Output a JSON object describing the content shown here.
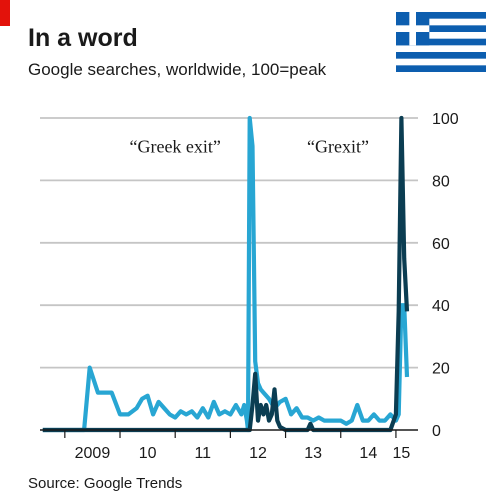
{
  "header": {
    "accent_color": "#e3120b",
    "flag": {
      "name": "greek-flag-icon",
      "blue": "#0d5eaf",
      "white": "#ffffff"
    }
  },
  "chart_data": {
    "type": "line",
    "title": "In a word",
    "subtitle": "Google searches, worldwide, 100=peak",
    "source": "Source: Google Trends",
    "ylim": [
      0,
      100
    ],
    "y_ticks": [
      0,
      20,
      40,
      60,
      80,
      100
    ],
    "y_tick_labels": [
      "0",
      "20",
      "40",
      "60",
      "80",
      "100"
    ],
    "xlim": [
      2008.55,
      2015.4
    ],
    "x_tick_labels": [
      {
        "pos": 2009.5,
        "label": "2009"
      },
      {
        "pos": 2010.5,
        "label": "10"
      },
      {
        "pos": 2011.5,
        "label": "11"
      },
      {
        "pos": 2012.5,
        "label": "12"
      },
      {
        "pos": 2013.5,
        "label": "13"
      },
      {
        "pos": 2014.5,
        "label": "14"
      },
      {
        "pos": 2015.1,
        "label": "15"
      }
    ],
    "x_tick_marks": [
      2009,
      2010,
      2011,
      2012,
      2013,
      2014,
      2015
    ],
    "grid": true,
    "annotations": [
      {
        "text": "“Greek exit”",
        "x": 2011.0,
        "y": 89
      },
      {
        "text": "“Grexit”",
        "x": 2013.95,
        "y": 89
      }
    ],
    "series": [
      {
        "color": "#28a6d3",
        "x": [
          2008.6,
          2009.2,
          2009.35,
          2009.45,
          2009.6,
          2009.75,
          2009.85,
          2010.0,
          2010.15,
          2010.3,
          2010.4,
          2010.5,
          2010.6,
          2010.7,
          2010.8,
          2010.9,
          2011.0,
          2011.1,
          2011.2,
          2011.3,
          2011.4,
          2011.5,
          2011.6,
          2011.7,
          2011.8,
          2011.9,
          2012.0,
          2012.1,
          2012.2,
          2012.25,
          2012.3,
          2012.32,
          2012.35,
          2012.4,
          2012.45,
          2012.5,
          2012.55,
          2012.6,
          2012.7,
          2012.8,
          2012.9,
          2013.0,
          2013.1,
          2013.2,
          2013.3,
          2013.4,
          2013.5,
          2013.6,
          2013.7,
          2013.8,
          2013.9,
          2014.0,
          2014.1,
          2014.2,
          2014.3,
          2014.4,
          2014.5,
          2014.6,
          2014.7,
          2014.8,
          2014.9,
          2014.95,
          2015.0,
          2015.05,
          2015.1,
          2015.15,
          2015.2
        ],
        "values": [
          0,
          0,
          0,
          20,
          12,
          12,
          12,
          5,
          5,
          7,
          10,
          11,
          5,
          9,
          7,
          5,
          4,
          6,
          5,
          6,
          4,
          7,
          4,
          9,
          5,
          6,
          5,
          8,
          5,
          8,
          3,
          0,
          100,
          91,
          22,
          15,
          13,
          12,
          10,
          7,
          9,
          10,
          5,
          7,
          4,
          4,
          3,
          4,
          3,
          3,
          3,
          3,
          2,
          3,
          8,
          3,
          3,
          5,
          3,
          3,
          5,
          4,
          3,
          5,
          40,
          40,
          17
        ]
      },
      {
        "color": "#0b3d52",
        "x": [
          2008.6,
          2012.3,
          2012.35,
          2012.4,
          2012.45,
          2012.5,
          2012.55,
          2012.6,
          2012.65,
          2012.7,
          2012.75,
          2012.8,
          2012.85,
          2012.9,
          2013.0,
          2013.1,
          2013.3,
          2013.4,
          2013.45,
          2013.5,
          2013.6,
          2014.0,
          2014.5,
          2014.9,
          2015.0,
          2015.05,
          2015.1,
          2015.15,
          2015.2
        ],
        "values": [
          0,
          0,
          0,
          8,
          18,
          3,
          8,
          5,
          8,
          3,
          5,
          13,
          3,
          1,
          0,
          0,
          0,
          0,
          2,
          0,
          0,
          0,
          0,
          0,
          5,
          38,
          100,
          55,
          38
        ]
      }
    ]
  }
}
